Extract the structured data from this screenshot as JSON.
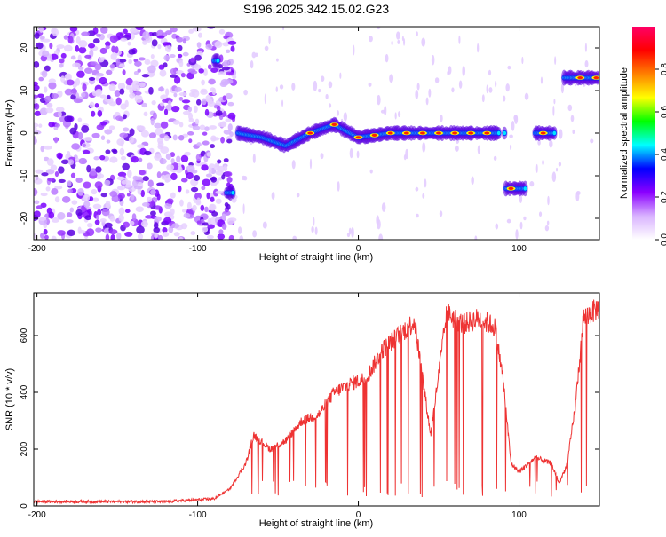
{
  "title": "S196.2025.342.15.02.G23",
  "chart_data": [
    {
      "type": "heatmap",
      "xlabel": "Height of straight line (km)",
      "ylabel": "Frequency (Hz)",
      "xlim": [
        -202,
        150
      ],
      "ylim": [
        -25,
        25
      ],
      "xticks": [
        -200,
        -100,
        0,
        100
      ],
      "yticks": [
        -20,
        -10,
        0,
        10,
        20
      ],
      "colorbar": {
        "label": "Normalized spectral amplitude",
        "range": [
          0,
          1
        ],
        "ticks": [
          "0.0",
          "0.2",
          "0.4",
          "0.6",
          "0.8"
        ],
        "stops": [
          "#ffffff",
          "#d9b3ff",
          "#8b00ff",
          "#0000ff",
          "#00ffff",
          "#00ff00",
          "#ffff00",
          "#ff8000",
          "#ff0000",
          "#ff0066"
        ]
      },
      "ridge": [
        {
          "x": -90,
          "y": 17
        },
        {
          "x": -80,
          "y": -14
        },
        {
          "x": -75,
          "y": 0
        },
        {
          "x": -60,
          "y": -1
        },
        {
          "x": -45,
          "y": -3
        },
        {
          "x": -30,
          "y": 0
        },
        {
          "x": -15,
          "y": 2
        },
        {
          "x": 0,
          "y": -1
        },
        {
          "x": 20,
          "y": 0
        },
        {
          "x": 50,
          "y": 0
        },
        {
          "x": 85,
          "y": 0
        },
        {
          "x": 98,
          "y": -13
        },
        {
          "x": 120,
          "y": 0
        },
        {
          "x": 135,
          "y": 13
        },
        {
          "x": 150,
          "y": 13
        }
      ]
    },
    {
      "type": "line",
      "xlabel": "Height of straight line (km)",
      "ylabel": "SNR (10 * v/v)",
      "xlim": [
        -202,
        150
      ],
      "ylim": [
        0,
        750
      ],
      "xticks": [
        -200,
        -100,
        0,
        100
      ],
      "yticks": [
        0,
        200,
        400,
        600
      ],
      "color": "#ee3333",
      "series": [
        {
          "name": "SNR",
          "x": [
            -202,
            -120,
            -90,
            -80,
            -70,
            -65,
            -55,
            -45,
            -35,
            -25,
            -15,
            -5,
            5,
            15,
            25,
            35,
            45,
            55,
            65,
            75,
            85,
            90,
            95,
            100,
            110,
            120,
            125,
            130,
            135,
            140,
            145,
            150
          ],
          "y": [
            15,
            15,
            25,
            60,
            150,
            250,
            200,
            230,
            300,
            320,
            400,
            430,
            450,
            550,
            600,
            650,
            250,
            680,
            640,
            660,
            630,
            450,
            150,
            120,
            170,
            150,
            80,
            150,
            350,
            660,
            680,
            700
          ]
        }
      ]
    }
  ]
}
